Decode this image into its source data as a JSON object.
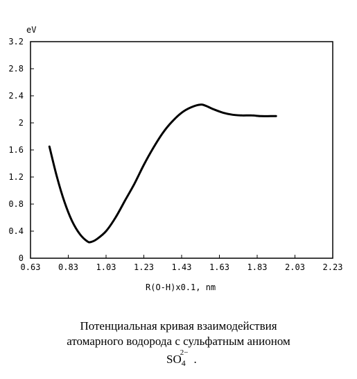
{
  "chart_data": {
    "type": "line",
    "y_unit": "eV",
    "xlabel": "R(O-H)x0.1, nm",
    "ylabel": "",
    "xlim": [
      0.63,
      2.23
    ],
    "ylim": [
      0,
      3.2
    ],
    "x_ticks": [
      "0.63",
      "0.83",
      "1.03",
      "1.23",
      "1.43",
      "1.63",
      "1.83",
      "2.03",
      "2.23"
    ],
    "y_ticks": [
      "0",
      "0.4",
      "0.8",
      "1.2",
      "1.6",
      "2",
      "2.4",
      "2.8",
      "3.2"
    ],
    "grid": false,
    "series": [
      {
        "x": [
          0.73,
          0.77,
          0.81,
          0.85,
          0.89,
          0.93,
          0.95,
          0.98,
          1.03,
          1.08,
          1.13,
          1.18,
          1.23,
          1.28,
          1.33,
          1.38,
          1.43,
          1.48,
          1.53,
          1.56,
          1.6,
          1.65,
          1.7,
          1.75,
          1.8,
          1.85,
          1.9,
          1.93
        ],
        "y": [
          1.65,
          1.2,
          0.83,
          0.55,
          0.36,
          0.25,
          0.24,
          0.28,
          0.4,
          0.6,
          0.85,
          1.1,
          1.38,
          1.63,
          1.85,
          2.02,
          2.15,
          2.23,
          2.27,
          2.25,
          2.2,
          2.15,
          2.12,
          2.11,
          2.11,
          2.1,
          2.1,
          2.1
        ]
      }
    ]
  },
  "caption": {
    "line1": "Потенциальная кривая взаимодействия",
    "line2": "атомарного водорода с сульфатным анионом",
    "formula_main": "SO",
    "formula_sub": "4",
    "formula_sup": "2−",
    "formula_end": "."
  }
}
